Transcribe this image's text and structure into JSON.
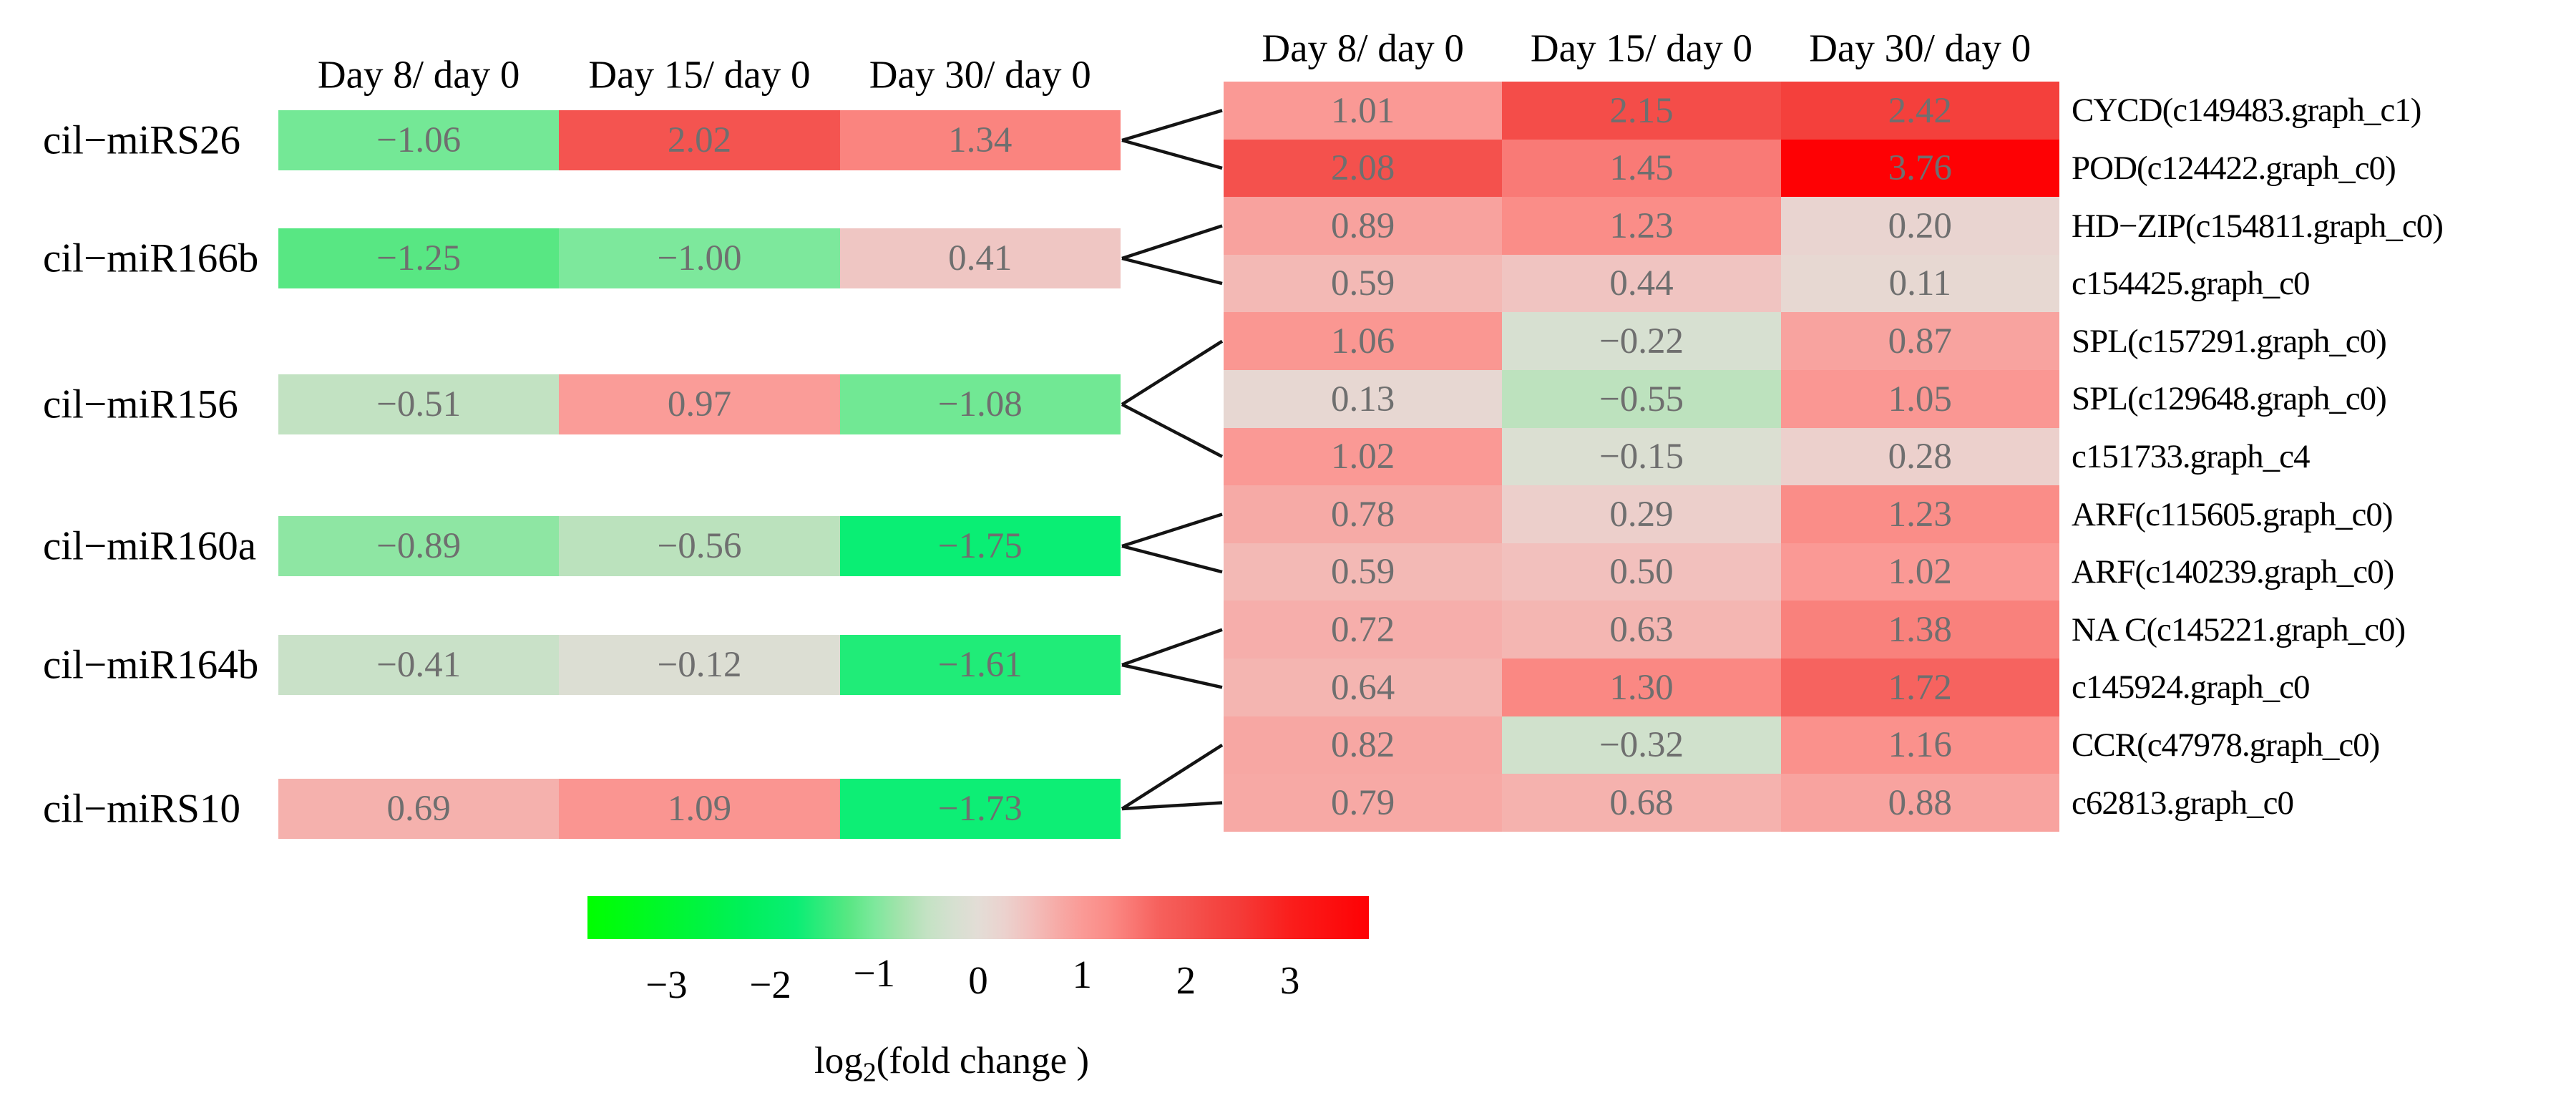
{
  "chart_data": {
    "type": "heatmap",
    "title": "",
    "columns": [
      "Day 8/ day 0",
      "Day 15/ day 0",
      "Day 30/ day 0"
    ],
    "left_heatmap": {
      "rows": [
        {
          "label": "cil−miRS26",
          "values": [
            -1.06,
            2.02,
            1.34
          ]
        },
        {
          "label": "cil−miR166b",
          "values": [
            -1.25,
            -1.0,
            0.41
          ]
        },
        {
          "label": "cil−miR156",
          "values": [
            -0.51,
            0.97,
            -1.08
          ]
        },
        {
          "label": "cil−miR160a",
          "values": [
            -0.89,
            -0.56,
            -1.75
          ]
        },
        {
          "label": "cil−miR164b",
          "values": [
            -0.41,
            -0.12,
            -1.61
          ]
        },
        {
          "label": "cil−miRS10",
          "values": [
            0.69,
            1.09,
            -1.73
          ]
        }
      ]
    },
    "right_heatmap": {
      "rows": [
        {
          "label": "CYCD(c149483.graph_c1)",
          "values": [
            1.01,
            2.15,
            2.42
          ]
        },
        {
          "label": "POD(c124422.graph_c0)",
          "values": [
            2.08,
            1.45,
            3.76
          ]
        },
        {
          "label": "HD−ZIP(c154811.graph_c0)",
          "values": [
            0.89,
            1.23,
            0.2
          ]
        },
        {
          "label": "c154425.graph_c0",
          "values": [
            0.59,
            0.44,
            0.11
          ]
        },
        {
          "label": "SPL(c157291.graph_c0)",
          "values": [
            1.06,
            -0.22,
            0.87
          ]
        },
        {
          "label": "SPL(c129648.graph_c0)",
          "values": [
            0.13,
            -0.55,
            1.05
          ]
        },
        {
          "label": "c151733.graph_c4",
          "values": [
            1.02,
            -0.15,
            0.28
          ]
        },
        {
          "label": "ARF(c115605.graph_c0)",
          "values": [
            0.78,
            0.29,
            1.23
          ]
        },
        {
          "label": "ARF(c140239.graph_c0)",
          "values": [
            0.59,
            0.5,
            1.02
          ]
        },
        {
          "label": "NA C(c145221.graph_c0)",
          "values": [
            0.72,
            0.63,
            1.38
          ]
        },
        {
          "label": "c145924.graph_c0",
          "values": [
            0.64,
            1.3,
            1.72
          ]
        },
        {
          "label": "CCR(c47978.graph_c0)",
          "values": [
            0.82,
            -0.32,
            1.16
          ]
        },
        {
          "label": "c62813.graph_c0",
          "values": [
            0.79,
            0.68,
            0.88
          ]
        }
      ]
    },
    "links": [
      {
        "mirna": 0,
        "targets": [
          0,
          1
        ]
      },
      {
        "mirna": 1,
        "targets": [
          2,
          3
        ]
      },
      {
        "mirna": 2,
        "targets": [
          4,
          6
        ]
      },
      {
        "mirna": 3,
        "targets": [
          7,
          8
        ]
      },
      {
        "mirna": 4,
        "targets": [
          9,
          10
        ]
      },
      {
        "mirna": 5,
        "targets": [
          11,
          12
        ]
      }
    ],
    "colorbar": {
      "label": "log2(fold change)",
      "title_log": "log",
      "title_sub": "2",
      "title_rest": "(fold change  )",
      "domain": [
        -3.76,
        3.76
      ],
      "ticks": [
        {
          "value": -3,
          "label": "−3"
        },
        {
          "value": -2,
          "label": "−2"
        },
        {
          "value": -1,
          "label": "−1"
        },
        {
          "value": 0,
          "label": "0"
        },
        {
          "value": 1,
          "label": "1"
        },
        {
          "value": 2,
          "label": "2"
        },
        {
          "value": 3,
          "label": "3"
        }
      ],
      "colormap": [
        {
          "v": -3.76,
          "c": "#00FF00"
        },
        {
          "v": -2.25,
          "c": "#00F05A"
        },
        {
          "v": -1.75,
          "c": "#0AEE74"
        },
        {
          "v": -1.25,
          "c": "#58E783"
        },
        {
          "v": -1.0,
          "c": "#7DE89C"
        },
        {
          "v": -0.75,
          "c": "#A3E3AC"
        },
        {
          "v": -0.5,
          "c": "#C3E2C3"
        },
        {
          "v": -0.25,
          "c": "#D5E0D0"
        },
        {
          "v": 0.0,
          "c": "#E3DDD6"
        },
        {
          "v": 0.25,
          "c": "#EBD2CE"
        },
        {
          "v": 0.5,
          "c": "#F2C0BD"
        },
        {
          "v": 0.75,
          "c": "#F6ACA8"
        },
        {
          "v": 1.0,
          "c": "#FA9A96"
        },
        {
          "v": 1.25,
          "c": "#FA8C87"
        },
        {
          "v": 1.5,
          "c": "#F97672"
        },
        {
          "v": 1.75,
          "c": "#F6605C"
        },
        {
          "v": 2.0,
          "c": "#F45551"
        },
        {
          "v": 2.25,
          "c": "#F44743"
        },
        {
          "v": 2.5,
          "c": "#F43C39"
        },
        {
          "v": 3.0,
          "c": "#FA1E1C"
        },
        {
          "v": 3.76,
          "c": "#FE0104"
        }
      ]
    }
  }
}
